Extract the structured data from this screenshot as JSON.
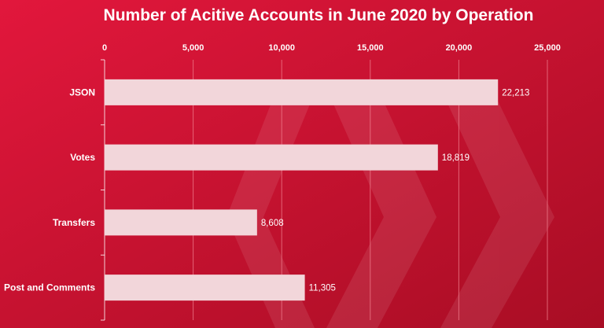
{
  "colors": {
    "background_light": "#e2173c",
    "background_dark": "#a80d24",
    "bar": "#f2d6da",
    "gridline": "#f07e8d",
    "text": "#ffffff"
  },
  "chart_data": {
    "type": "bar",
    "orientation": "horizontal",
    "title": "Number of Acitive Accounts in June 2020 by Operation",
    "categories": [
      "JSON",
      "Votes",
      "Transfers",
      "Post and Comments"
    ],
    "values": [
      22213,
      18819,
      8608,
      11305
    ],
    "value_labels": [
      "22,213",
      "18,819",
      "8,608",
      "11,305"
    ],
    "xlim": [
      0,
      25000
    ],
    "xticks": [
      0,
      5000,
      10000,
      15000,
      20000,
      25000
    ],
    "xtick_labels": [
      "0",
      "5,000",
      "10,000",
      "15,000",
      "20,000",
      "25,000"
    ],
    "x_axis_position": "top",
    "grid": "vertical",
    "legend": "none",
    "background_watermark": "hive-logo"
  }
}
